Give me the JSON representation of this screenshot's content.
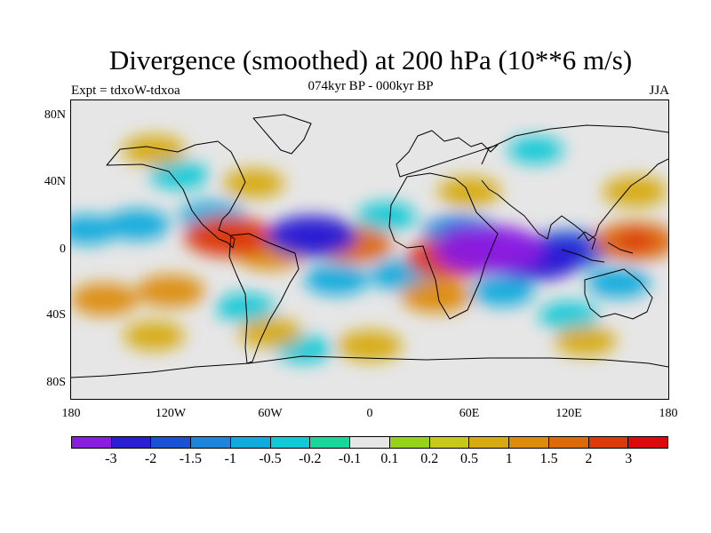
{
  "title": "Divergence (smoothed) at 200 hPa (10**6 m/s)",
  "subtitle": "074kyr BP - 000kyr BP",
  "experiment": "Expt = tdxoW-tdxoa",
  "season": "JJA",
  "latitude_ticks": [
    "80N",
    "40N",
    "0",
    "40S",
    "80S"
  ],
  "longitude_ticks": [
    "180",
    "120W",
    "60W",
    "0",
    "60E",
    "120E",
    "180"
  ],
  "colorbar": {
    "colors": [
      "#8a1ee0",
      "#2b1fd4",
      "#1a52d6",
      "#1d86dc",
      "#10aadc",
      "#10c8d6",
      "#1ad69a",
      "#e6e6e6",
      "#96d21a",
      "#c8c81a",
      "#d6aa10",
      "#dc8c0a",
      "#dc6a0a",
      "#dc3a0a",
      "#dc0a0a"
    ],
    "labels": [
      "-3",
      "-2",
      "-1.5",
      "-1",
      "-0.5",
      "-0.2",
      "-0.1",
      "0.1",
      "0.2",
      "0.5",
      "1",
      "1.5",
      "2",
      "3"
    ]
  },
  "chart_data": {
    "type": "heatmap",
    "title": "Divergence (smoothed) at 200 hPa (10**6 m/s)",
    "subtitle": "074kyr BP - 000kyr BP",
    "x_range": [
      -180,
      180
    ],
    "y_range": [
      -90,
      90
    ],
    "levels": [
      -3,
      -2,
      -1.5,
      -1,
      -0.5,
      -0.2,
      -0.1,
      0.1,
      0.2,
      0.5,
      1,
      1.5,
      2,
      3
    ],
    "features": [
      {
        "lon": 72,
        "lat": 0,
        "value": -3.2
      },
      {
        "lon": -35,
        "lat": 8,
        "value": -2.2
      },
      {
        "lon": 55,
        "lat": 10,
        "value": -1.5
      },
      {
        "lon": 100,
        "lat": -6,
        "value": -2.2
      },
      {
        "lon": 120,
        "lat": 0,
        "value": -1.8
      },
      {
        "lon": -85,
        "lat": 8,
        "value": 2.1
      },
      {
        "lon": -10,
        "lat": 3,
        "value": 1.6
      },
      {
        "lon": 50,
        "lat": -5,
        "value": 2.3
      },
      {
        "lon": 160,
        "lat": 5,
        "value": 1.8
      },
      {
        "lon": -60,
        "lat": -2,
        "value": 1.2
      },
      {
        "lon": 40,
        "lat": -28,
        "value": 1.1
      },
      {
        "lon": -160,
        "lat": -30,
        "value": 1.0
      },
      {
        "lon": -120,
        "lat": -25,
        "value": 1.0
      },
      {
        "lon": 0,
        "lat": -58,
        "value": 0.8
      },
      {
        "lon": -60,
        "lat": -50,
        "value": 0.7
      },
      {
        "lon": 130,
        "lat": -55,
        "value": 0.6
      },
      {
        "lon": -130,
        "lat": -52,
        "value": 0.6
      },
      {
        "lon": 160,
        "lat": 35,
        "value": 0.8
      },
      {
        "lon": 60,
        "lat": 35,
        "value": 0.7
      },
      {
        "lon": -130,
        "lat": 60,
        "value": 0.7
      },
      {
        "lon": -70,
        "lat": 40,
        "value": 0.6
      },
      {
        "lon": -140,
        "lat": 15,
        "value": -0.8
      },
      {
        "lon": -95,
        "lat": 20,
        "value": -0.9
      },
      {
        "lon": -20,
        "lat": -18,
        "value": -0.8
      },
      {
        "lon": 20,
        "lat": -15,
        "value": -0.9
      },
      {
        "lon": 80,
        "lat": -25,
        "value": -0.7
      },
      {
        "lon": 150,
        "lat": -20,
        "value": -0.7
      },
      {
        "lon": -170,
        "lat": 12,
        "value": -0.6
      },
      {
        "lon": 10,
        "lat": 20,
        "value": -0.5
      },
      {
        "lon": -75,
        "lat": -35,
        "value": -0.5
      },
      {
        "lon": -115,
        "lat": 45,
        "value": -0.5
      },
      {
        "lon": 100,
        "lat": 60,
        "value": -0.3
      },
      {
        "lon": -40,
        "lat": -60,
        "value": -0.4
      },
      {
        "lon": 120,
        "lat": -40,
        "value": -0.5
      }
    ]
  }
}
